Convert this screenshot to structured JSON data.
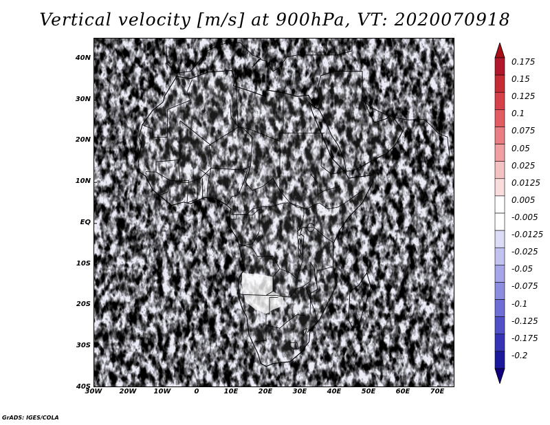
{
  "title": "Vertical velocity [m/s] at 900hPa, VT: 2020070918",
  "footer": "GrADS: IGES/COLA",
  "lat_axis": {
    "labels": [
      "40N",
      "30N",
      "20N",
      "10N",
      "EQ",
      "10S",
      "20S",
      "30S",
      "40S"
    ],
    "values": [
      40,
      30,
      20,
      10,
      0,
      -10,
      -20,
      -30,
      -40
    ],
    "range": [
      -40,
      45
    ]
  },
  "lon_axis": {
    "labels": [
      "30W",
      "20W",
      "10W",
      "0",
      "10E",
      "20E",
      "30E",
      "40E",
      "50E",
      "60E",
      "70E"
    ],
    "values": [
      -30,
      -20,
      -10,
      0,
      10,
      20,
      30,
      40,
      50,
      60,
      70
    ],
    "range": [
      -30,
      75
    ]
  },
  "colorbar": {
    "labels": [
      "0.175",
      "0.15",
      "0.125",
      "0.1",
      "0.075",
      "0.05",
      "0.025",
      "0.0125",
      "0.005",
      "-0.005",
      "-0.0125",
      "-0.025",
      "-0.05",
      "-0.075",
      "-0.1",
      "-0.125",
      "-0.175",
      "-0.2"
    ],
    "colors": [
      "#b2182b",
      "#c62c35",
      "#d6404a",
      "#e35c64",
      "#ea7e82",
      "#f0a0a2",
      "#f5c2c3",
      "#f9dcdc",
      "#ffffff",
      "#ffffff",
      "#dcdcf6",
      "#c2c2f0",
      "#a5a5e8",
      "#8c8ce0",
      "#6e6ed6",
      "#5050c8",
      "#3434b4",
      "#1a1a9a"
    ],
    "top_color": "#a50f15",
    "bottom_color": "#100080"
  },
  "map": {
    "field_colors": {
      "background": "#ececf7",
      "positive": "#e06060",
      "negative": "#7070d8",
      "neutral": "#ffffff"
    },
    "boundary_color": "#000000"
  }
}
